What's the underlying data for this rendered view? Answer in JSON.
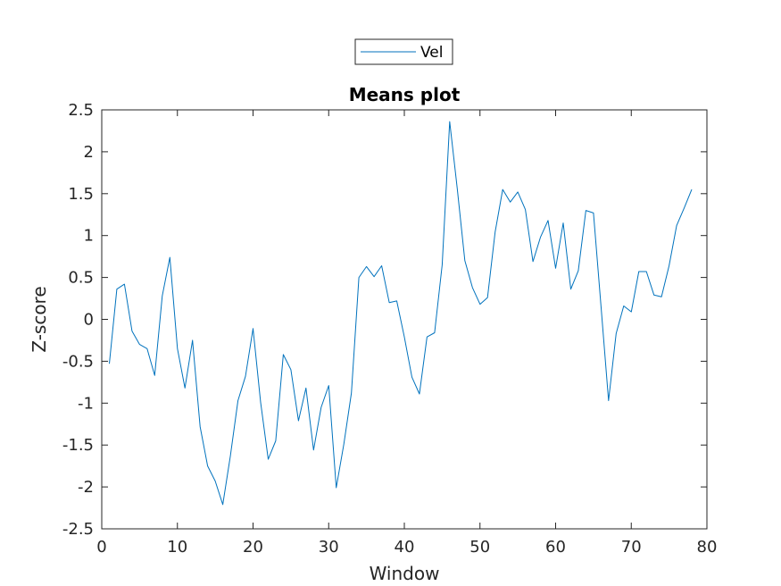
{
  "chart_data": {
    "type": "line",
    "title": "Means plot",
    "xlabel": "Window",
    "ylabel": "Z-score",
    "xlim": [
      0,
      80
    ],
    "ylim": [
      -2.5,
      2.5
    ],
    "xticks": [
      0,
      10,
      20,
      30,
      40,
      50,
      60,
      70,
      80
    ],
    "xtick_labels": [
      "0",
      "10",
      "20",
      "30",
      "40",
      "50",
      "60",
      "70",
      "80"
    ],
    "yticks": [
      -2.5,
      -2,
      -1.5,
      -1,
      -0.5,
      0,
      0.5,
      1,
      1.5,
      2,
      2.5
    ],
    "ytick_labels": [
      "-2.5",
      "-2",
      "-1.5",
      "-1",
      "-0.5",
      "0",
      "0.5",
      "1",
      "1.5",
      "2",
      "2.5"
    ],
    "grid": false,
    "legend_position": "top-center-outside",
    "series": [
      {
        "name": "Vel",
        "color": "#0072bd",
        "x": [
          1,
          2,
          3,
          4,
          5,
          6,
          7,
          8,
          9,
          10,
          11,
          12,
          13,
          14,
          15,
          16,
          17,
          18,
          19,
          20,
          21,
          22,
          23,
          24,
          25,
          26,
          27,
          28,
          29,
          30,
          31,
          32,
          33,
          34,
          35,
          36,
          37,
          38,
          39,
          40,
          41,
          42,
          43,
          44,
          45,
          46,
          47,
          48,
          49,
          50,
          51,
          52,
          53,
          54,
          55,
          56,
          57,
          58,
          59,
          60,
          61,
          62,
          63,
          64,
          65,
          66,
          67,
          68,
          69,
          70,
          71,
          72,
          73,
          74,
          75,
          76,
          77,
          78
        ],
        "values": [
          -0.53,
          0.36,
          0.42,
          -0.14,
          -0.3,
          -0.35,
          -0.67,
          0.28,
          0.74,
          -0.35,
          -0.82,
          -0.25,
          -1.28,
          -1.75,
          -1.93,
          -2.21,
          -1.63,
          -0.97,
          -0.68,
          -0.11,
          -0.99,
          -1.67,
          -1.45,
          -0.42,
          -0.6,
          -1.21,
          -0.82,
          -1.56,
          -1.05,
          -0.79,
          -2.01,
          -1.49,
          -0.88,
          0.5,
          0.63,
          0.51,
          0.64,
          0.2,
          0.22,
          -0.21,
          -0.69,
          -0.89,
          -0.21,
          -0.16,
          0.65,
          2.36,
          1.56,
          0.7,
          0.38,
          0.18,
          0.26,
          1.04,
          1.55,
          1.4,
          1.52,
          1.31,
          0.69,
          0.98,
          1.18,
          0.61,
          1.15,
          0.36,
          0.58,
          1.3,
          1.27,
          0.15,
          -0.97,
          -0.17,
          0.16,
          0.09,
          0.57,
          0.57,
          0.29,
          0.27,
          0.64,
          1.12,
          1.33,
          1.55
        ]
      }
    ]
  }
}
